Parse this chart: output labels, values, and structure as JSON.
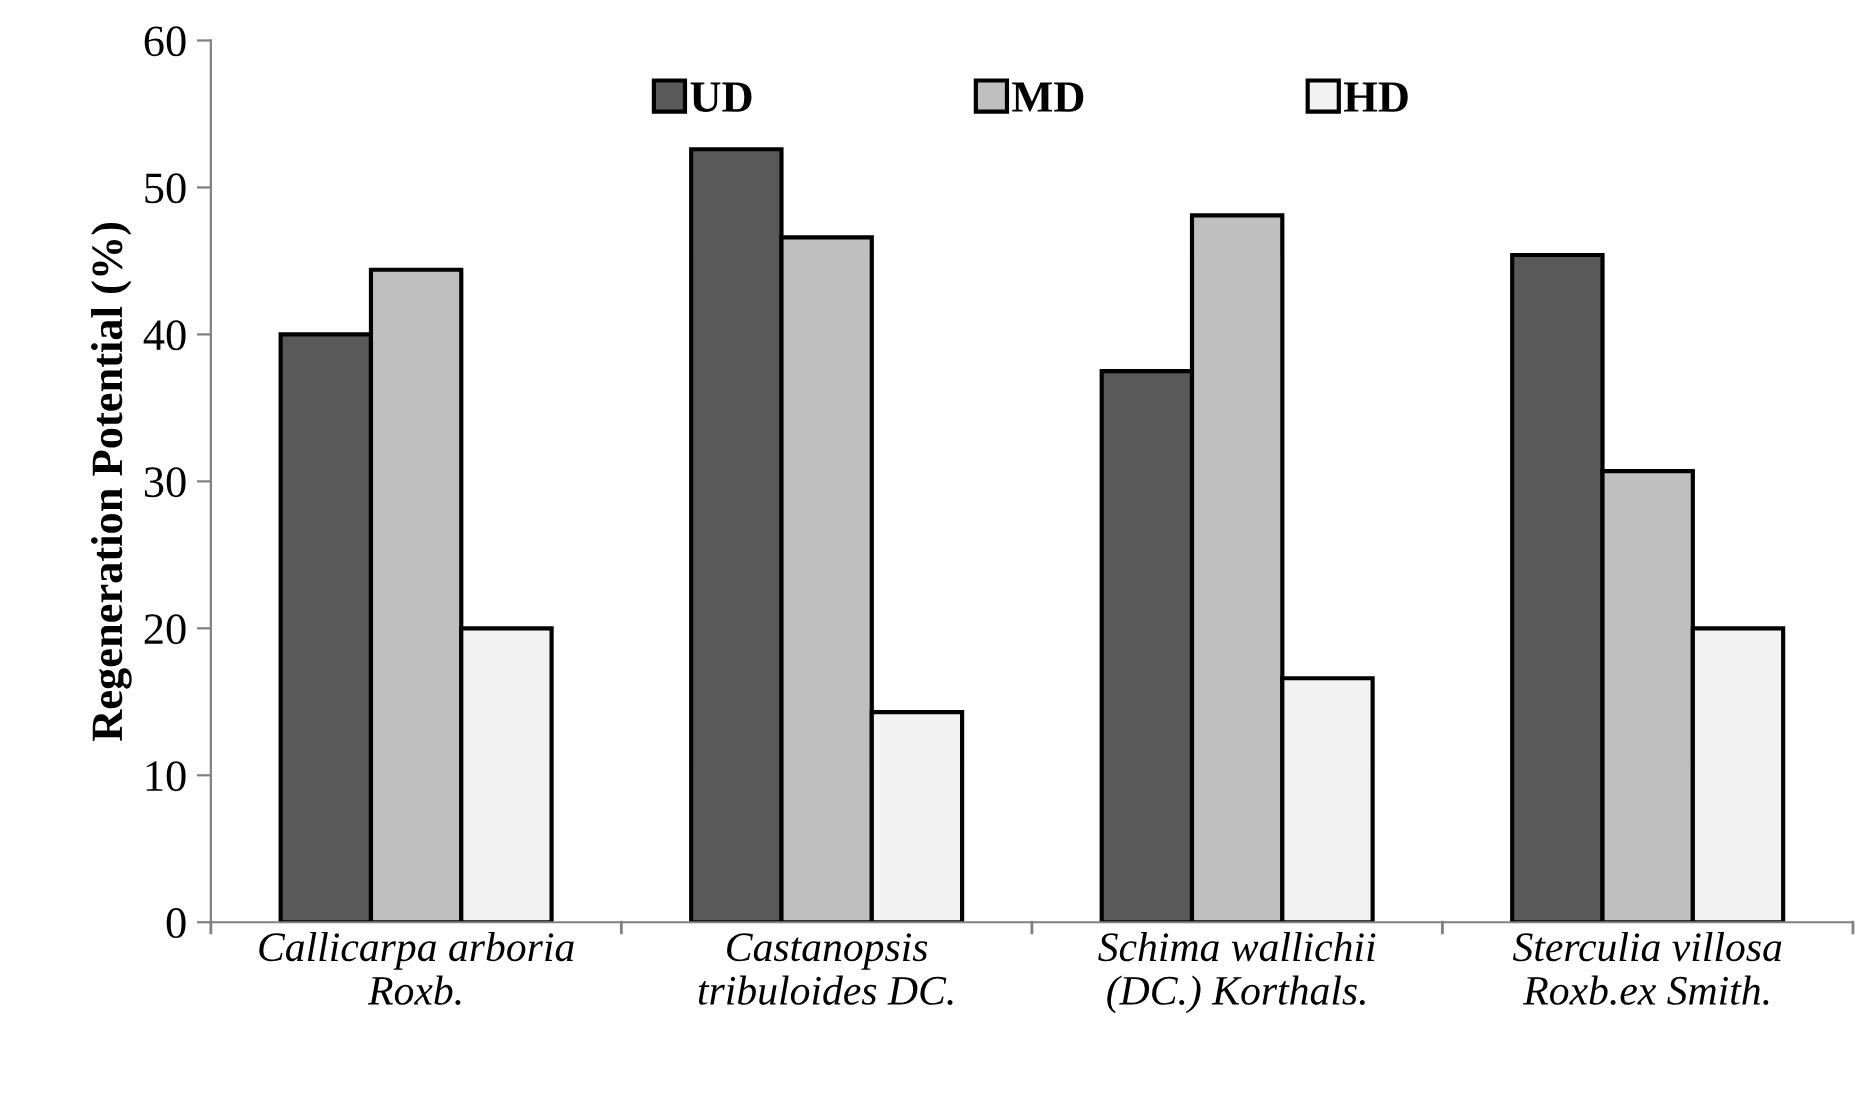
{
  "chart_data": {
    "type": "bar",
    "ylabel": "Regeneration Potential (%)",
    "categories": [
      "Callicarpa arboria\nRoxb.",
      "Castanopsis\ntribuloides DC.",
      "Schima wallichii\n(DC.) Korthals.",
      "Sterculia villosa\nRoxb.ex Smith."
    ],
    "series": [
      {
        "name": "UD",
        "color": "#595959",
        "values": [
          40.0,
          52.6,
          37.5,
          45.4
        ]
      },
      {
        "name": "MD",
        "color": "#bfbfbf",
        "values": [
          44.4,
          46.6,
          48.1,
          30.7
        ]
      },
      {
        "name": "HD",
        "color": "#f2f2f2",
        "values": [
          20.0,
          14.3,
          16.6,
          20.0
        ]
      }
    ],
    "ylim": [
      0,
      60
    ],
    "yticks": [
      0,
      10,
      20,
      30,
      40,
      50,
      60
    ],
    "grid": false,
    "legend": "top"
  }
}
